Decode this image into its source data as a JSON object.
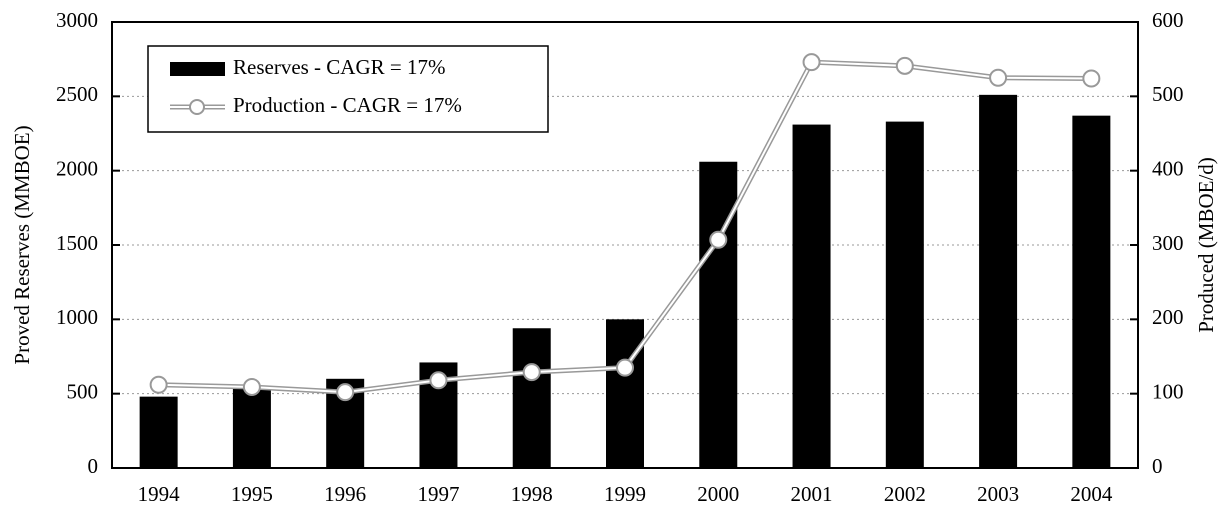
{
  "chart_data": {
    "type": "bar",
    "categories": [
      "1994",
      "1995",
      "1996",
      "1997",
      "1998",
      "1999",
      "2000",
      "2001",
      "2002",
      "2003",
      "2004"
    ],
    "series": [
      {
        "name": "Reserves - CAGR = 17%",
        "type": "bar",
        "color": "#000000",
        "values": [
          480,
          540,
          600,
          710,
          940,
          1000,
          2060,
          2310,
          2330,
          2510,
          2370
        ]
      },
      {
        "name": "Production - CAGR = 17%",
        "type": "line",
        "axis": "y2",
        "color": "#999999",
        "values": [
          112,
          109,
          102,
          118,
          129,
          135,
          307,
          546,
          541,
          525,
          524
        ]
      }
    ],
    "ylabel": "Proved Reserves (MMBOE)",
    "y2label": "Produced (MBOE/d)",
    "ylim": [
      0,
      3000
    ],
    "yticks": [
      0,
      500,
      1000,
      1500,
      2000,
      2500,
      3000
    ],
    "y2lim": [
      0,
      600
    ],
    "y2ticks": [
      0,
      100,
      200,
      300,
      400,
      500,
      600
    ],
    "grid": true,
    "legend": "upper left"
  }
}
